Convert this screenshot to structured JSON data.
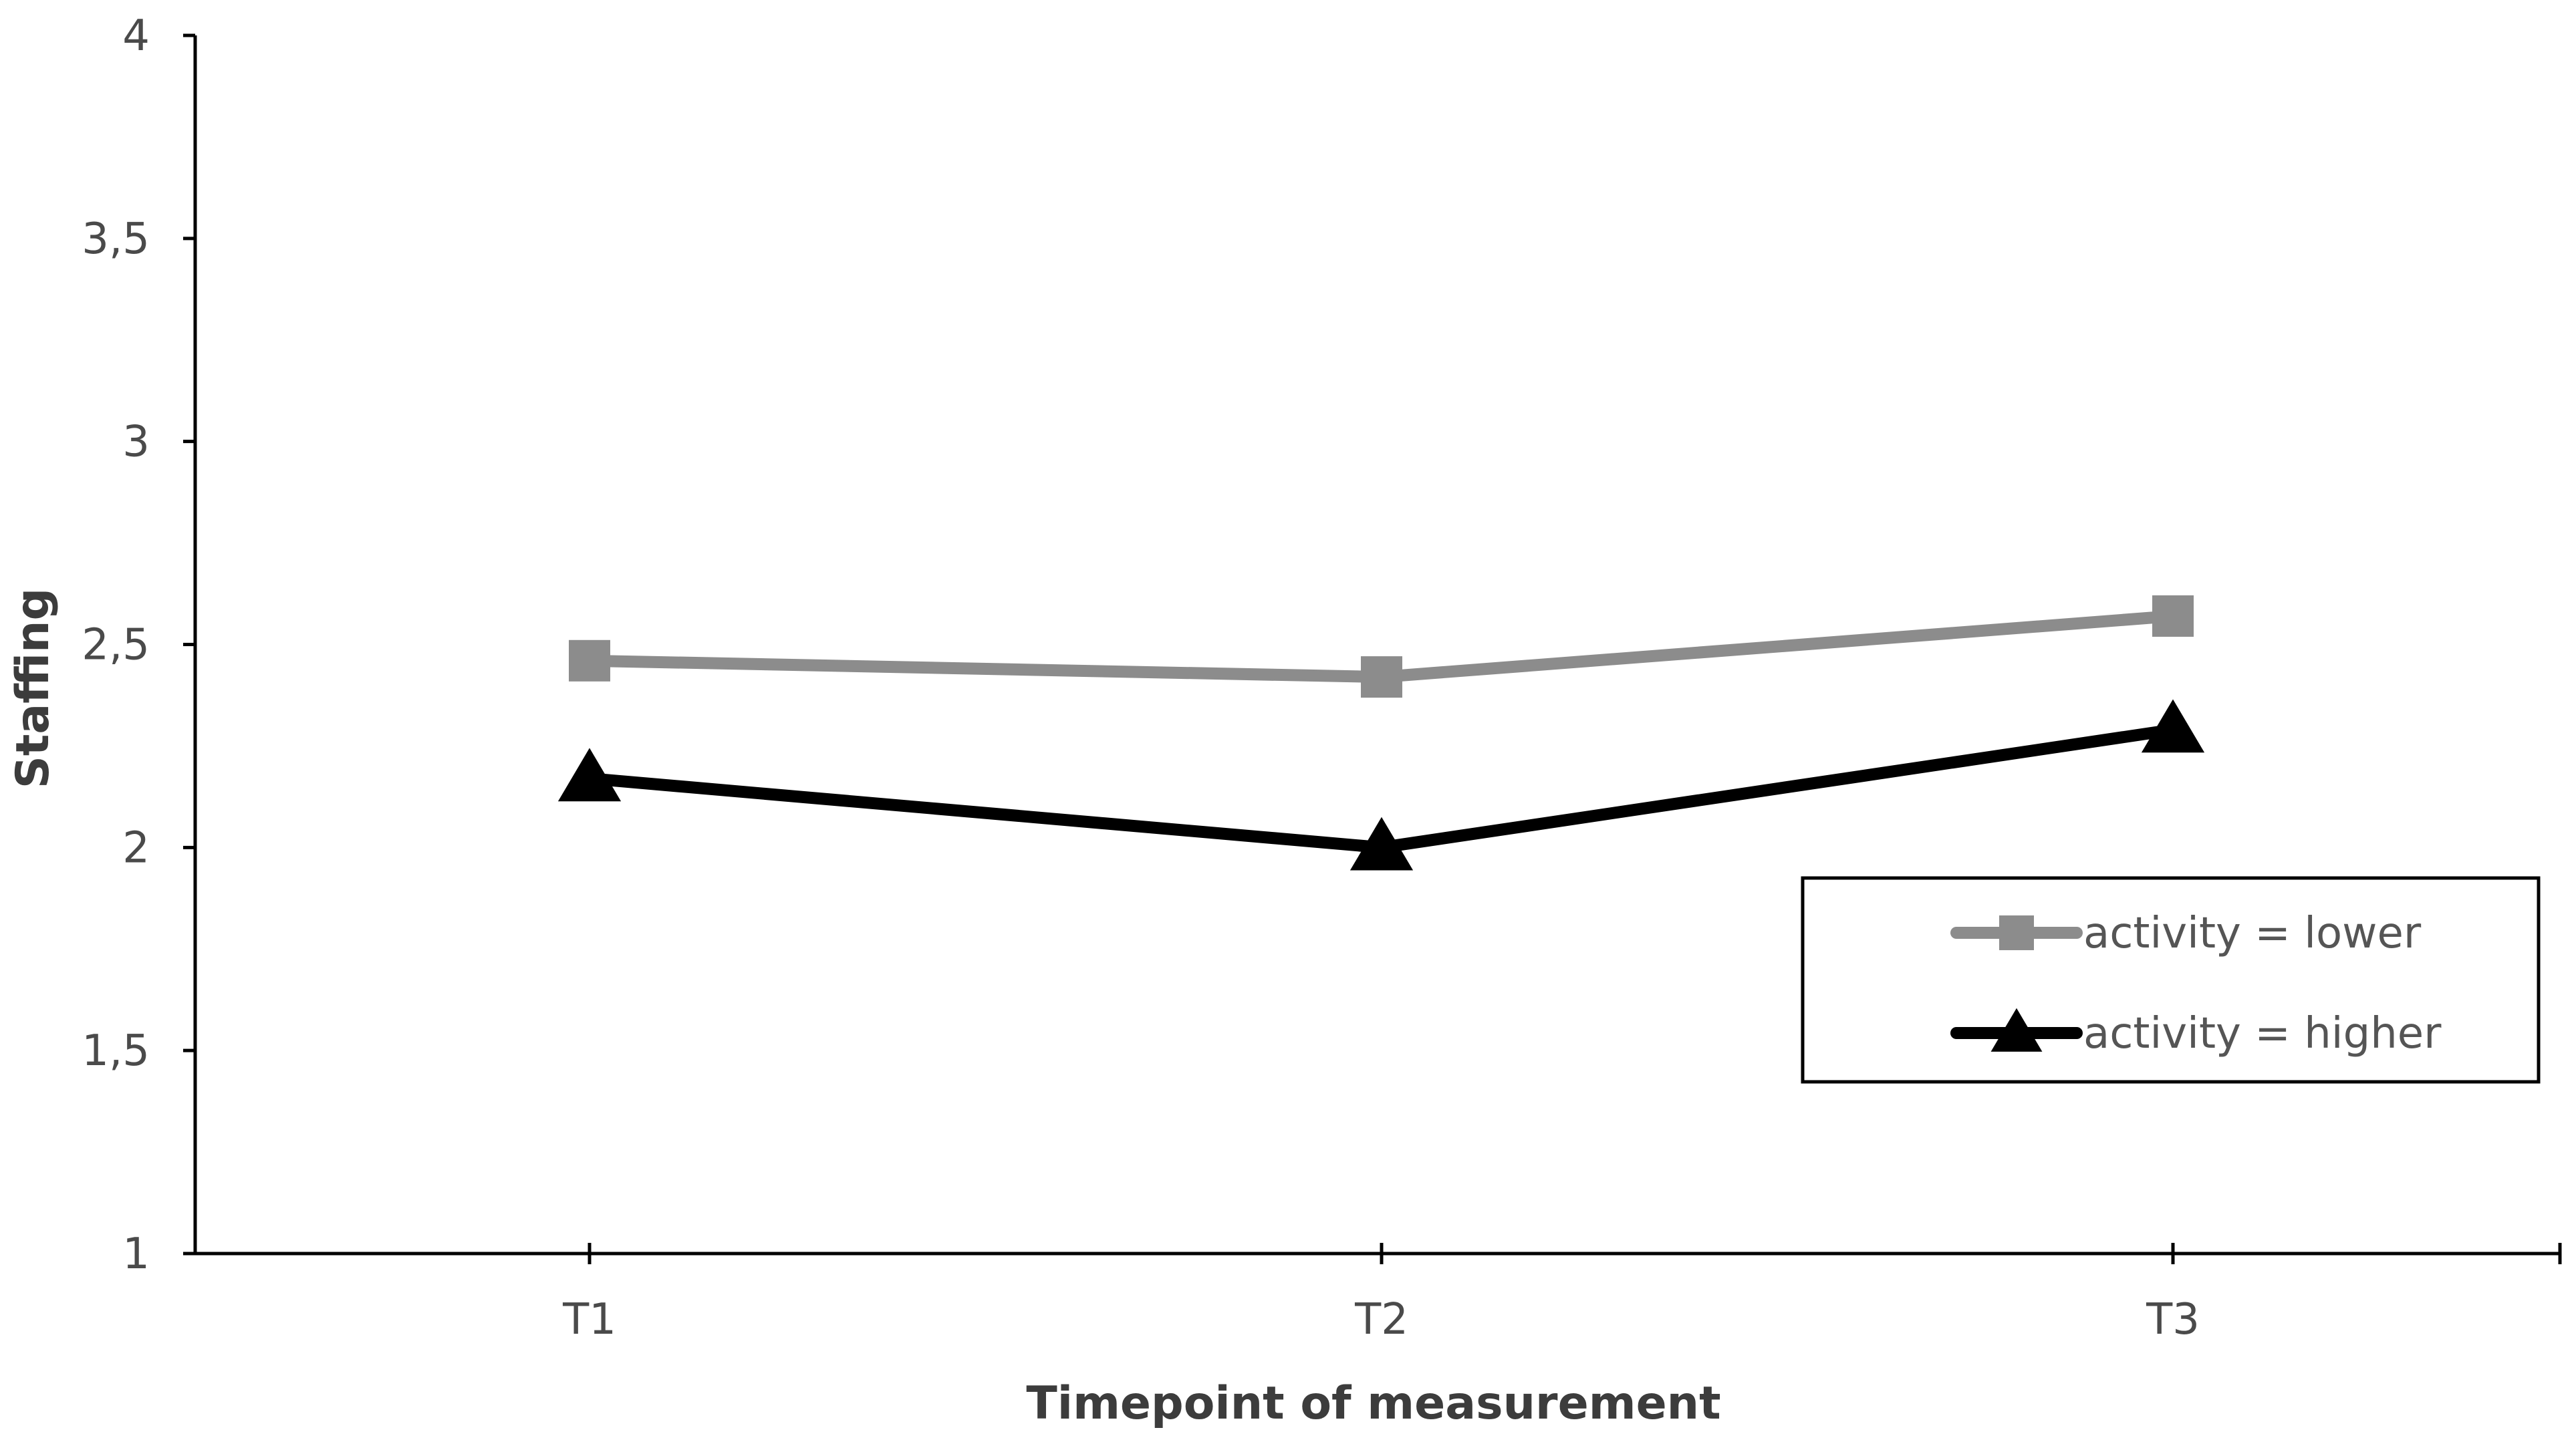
{
  "chart_data": {
    "type": "line",
    "categories": [
      "T1",
      "T2",
      "T3"
    ],
    "xlabel": "Timepoint of measurement",
    "ylabel": "Staffing",
    "ylim": [
      1,
      4
    ],
    "yticks": [
      1,
      1.5,
      2,
      2.5,
      3,
      3.5,
      4
    ],
    "ytick_labels": [
      "1",
      "1,5",
      "2",
      "2,5",
      "3",
      "3,5",
      "4"
    ],
    "grid": false,
    "legend_position": "right",
    "series": [
      {
        "name": "activity = lower",
        "values": [
          2.46,
          2.42,
          2.57
        ],
        "color": "#8c8c8c",
        "marker": "square"
      },
      {
        "name": "activity = higher",
        "values": [
          2.17,
          2.0,
          2.29
        ],
        "color": "#000000",
        "marker": "triangle"
      }
    ]
  }
}
